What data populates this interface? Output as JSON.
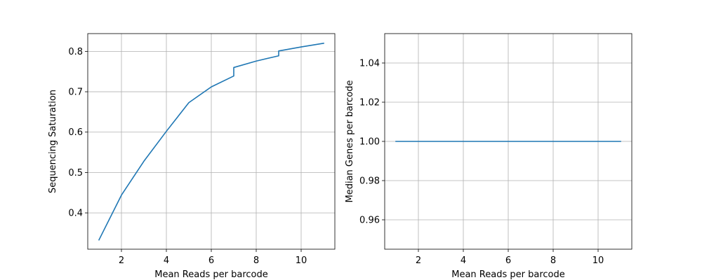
{
  "colors": {
    "series": "#1f77b4",
    "grid": "#b0b0b0",
    "background": "#ffffff"
  },
  "chart_data": [
    {
      "type": "line",
      "xlabel": "Mean Reads per barcode",
      "ylabel": "Sequencing Saturation",
      "grid": true,
      "xlim": [
        0.5,
        11.5
      ],
      "ylim": [
        0.31,
        0.844
      ],
      "xticks": [
        2,
        4,
        6,
        8,
        10
      ],
      "yticks": [
        0.4,
        0.5,
        0.6,
        0.7,
        0.8
      ],
      "xticklabels": [
        "2",
        "4",
        "6",
        "8",
        "10"
      ],
      "yticklabels": [
        "0.4",
        "0.5",
        "0.6",
        "0.7",
        "0.8"
      ],
      "series": [
        {
          "x": [
            1,
            2,
            3,
            4,
            5,
            6,
            7,
            7,
            8,
            9,
            9,
            10,
            11
          ],
          "y": [
            0.333,
            0.444,
            0.528,
            0.602,
            0.673,
            0.712,
            0.739,
            0.76,
            0.776,
            0.789,
            0.801,
            0.811,
            0.82
          ]
        }
      ]
    },
    {
      "type": "line",
      "xlabel": "Mean Reads per barcode",
      "ylabel": "Median Genes per barcode",
      "grid": true,
      "xlim": [
        0.5,
        11.5
      ],
      "ylim": [
        0.945,
        1.055
      ],
      "xticks": [
        2,
        4,
        6,
        8,
        10
      ],
      "yticks": [
        0.96,
        0.98,
        1.0,
        1.02,
        1.04
      ],
      "xticklabels": [
        "2",
        "4",
        "6",
        "8",
        "10"
      ],
      "yticklabels": [
        "0.96",
        "0.98",
        "1.00",
        "1.02",
        "1.04"
      ],
      "series": [
        {
          "x": [
            1,
            2,
            3,
            4,
            5,
            6,
            7,
            8,
            9,
            10,
            11
          ],
          "y": [
            1,
            1,
            1,
            1,
            1,
            1,
            1,
            1,
            1,
            1,
            1
          ]
        }
      ]
    }
  ]
}
